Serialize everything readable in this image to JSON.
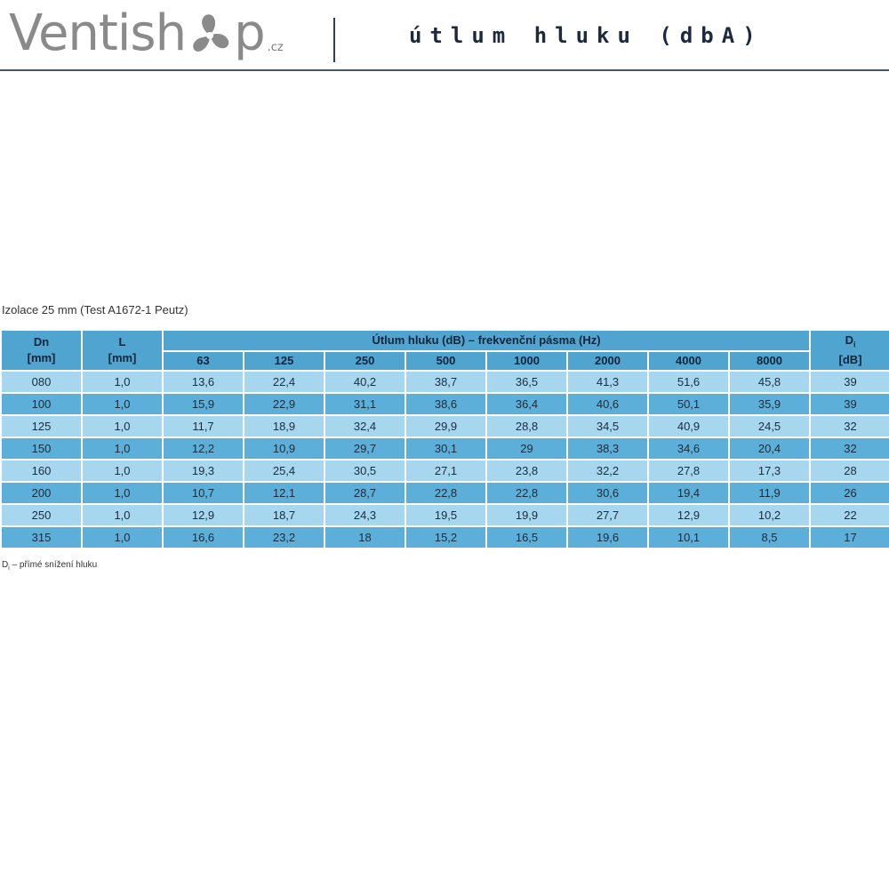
{
  "header": {
    "logo": {
      "prefix": "Ventish",
      "suffix": "p",
      "tld": ".cz"
    },
    "title": "útlum hluku (dbA)",
    "colors": {
      "logo_gray": "#8a8a8a",
      "rule": "#46566b"
    }
  },
  "caption": "Izolace 25 mm (Test A1672-1 Peutz)",
  "table": {
    "head": {
      "dn": "Dn",
      "dn_unit": "[mm]",
      "l": "L",
      "l_unit": "[mm]",
      "group": "Útlum hluku (dB) – frekvenční pásma (Hz)",
      "di": "D",
      "di_sub": "i",
      "di_unit": "[dB]",
      "hz": [
        "63",
        "125",
        "250",
        "500",
        "1000",
        "2000",
        "4000",
        "8000"
      ]
    },
    "rows": [
      [
        "080",
        "1,0",
        "13,6",
        "22,4",
        "40,2",
        "38,7",
        "36,5",
        "41,3",
        "51,6",
        "45,8",
        "39"
      ],
      [
        "100",
        "1,0",
        "15,9",
        "22,9",
        "31,1",
        "38,6",
        "36,4",
        "40,6",
        "50,1",
        "35,9",
        "39"
      ],
      [
        "125",
        "1,0",
        "11,7",
        "18,9",
        "32,4",
        "29,9",
        "28,8",
        "34,5",
        "40,9",
        "24,5",
        "32"
      ],
      [
        "150",
        "1,0",
        "12,2",
        "10,9",
        "29,7",
        "30,1",
        "29",
        "38,3",
        "34,6",
        "20,4",
        "32"
      ],
      [
        "160",
        "1,0",
        "19,3",
        "25,4",
        "30,5",
        "27,1",
        "23,8",
        "32,2",
        "27,8",
        "17,3",
        "28"
      ],
      [
        "200",
        "1,0",
        "10,7",
        "12,1",
        "28,7",
        "22,8",
        "22,8",
        "30,6",
        "19,4",
        "11,9",
        "26"
      ],
      [
        "250",
        "1,0",
        "12,9",
        "18,7",
        "24,3",
        "19,5",
        "19,9",
        "27,7",
        "12,9",
        "10,2",
        "22"
      ],
      [
        "315",
        "1,0",
        "16,6",
        "23,2",
        "18",
        "15,2",
        "16,5",
        "19,6",
        "10,1",
        "8,5",
        "17"
      ]
    ],
    "colors": {
      "header": "#4fa5cf",
      "row_light": "#a6d7ef",
      "row_dark": "#5cafd8"
    }
  },
  "footnote": {
    "symbol": "D",
    "sub": "i",
    "text": " – přímé snížení hluku"
  }
}
